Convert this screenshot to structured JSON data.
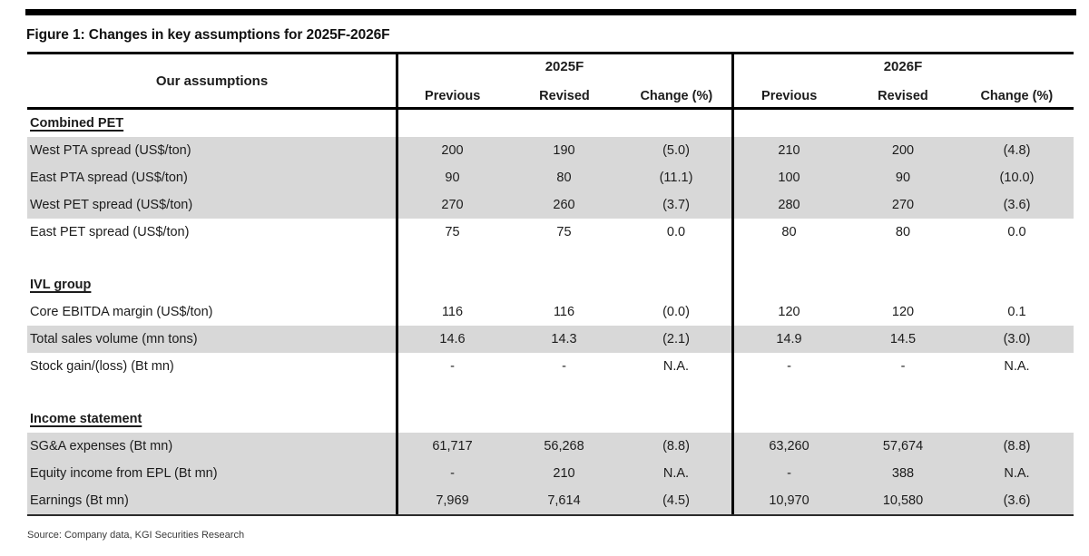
{
  "figure": {
    "title": "Figure 1: Changes in key assumptions for 2025F-2026F",
    "source": "Source: Company data, KGI Securities Research"
  },
  "table": {
    "corner_label": "Our assumptions",
    "groups": [
      {
        "label": "2025F",
        "columns": [
          "Previous",
          "Revised",
          "Change (%)"
        ]
      },
      {
        "label": "2026F",
        "columns": [
          "Previous",
          "Revised",
          "Change (%)"
        ]
      }
    ],
    "rows": [
      {
        "type": "section",
        "label": "Combined PET"
      },
      {
        "type": "data",
        "shaded": true,
        "label": "West PTA spread (US$/ton)",
        "values": [
          "200",
          "190",
          "(5.0)",
          "210",
          "200",
          "(4.8)"
        ]
      },
      {
        "type": "data",
        "shaded": true,
        "label": "East PTA spread (US$/ton)",
        "values": [
          "90",
          "80",
          "(11.1)",
          "100",
          "90",
          "(10.0)"
        ]
      },
      {
        "type": "data",
        "shaded": true,
        "label": "West PET spread (US$/ton)",
        "values": [
          "270",
          "260",
          "(3.7)",
          "280",
          "270",
          "(3.6)"
        ]
      },
      {
        "type": "data",
        "shaded": false,
        "label": "East PET spread (US$/ton)",
        "values": [
          "75",
          "75",
          "0.0",
          "80",
          "80",
          "0.0"
        ]
      },
      {
        "type": "blank"
      },
      {
        "type": "section",
        "label": "IVL group"
      },
      {
        "type": "data",
        "shaded": false,
        "label": "Core EBITDA margin (US$/ton)",
        "values": [
          "116",
          "116",
          "(0.0)",
          "120",
          "120",
          "0.1"
        ]
      },
      {
        "type": "data",
        "shaded": true,
        "label": "Total sales volume (mn tons)",
        "values": [
          "14.6",
          "14.3",
          "(2.1)",
          "14.9",
          "14.5",
          "(3.0)"
        ]
      },
      {
        "type": "data",
        "shaded": false,
        "label": "Stock gain/(loss) (Bt mn)",
        "values": [
          "-",
          "-",
          "N.A.",
          "-",
          "-",
          "N.A."
        ]
      },
      {
        "type": "blank"
      },
      {
        "type": "section",
        "label": "Income statement"
      },
      {
        "type": "data",
        "shaded": true,
        "label": "SG&A expenses (Bt mn)",
        "values": [
          "61,717",
          "56,268",
          "(8.8)",
          "63,260",
          "57,674",
          "(8.8)"
        ]
      },
      {
        "type": "data",
        "shaded": true,
        "label": "Equity income from EPL (Bt mn)",
        "values": [
          "-",
          "210",
          "N.A.",
          "-",
          "388",
          "N.A."
        ]
      },
      {
        "type": "data",
        "shaded": true,
        "label": "Earnings (Bt mn)",
        "values": [
          "7,969",
          "7,614",
          "(4.5)",
          "10,970",
          "10,580",
          "(3.6)"
        ]
      }
    ]
  },
  "colors": {
    "row_shade": "#d8d8d8",
    "border": "#000000",
    "text": "#1c1c1c"
  }
}
